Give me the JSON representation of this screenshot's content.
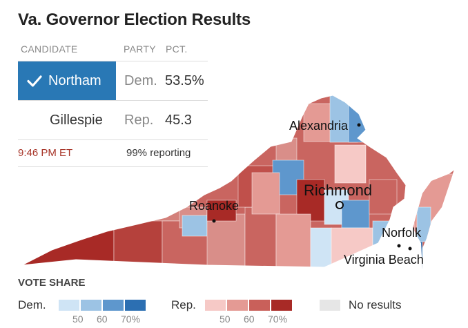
{
  "title": "Va. Governor Election Results",
  "table": {
    "headers": {
      "candidate": "CANDIDATE",
      "party": "PARTY",
      "pct": "PCT."
    },
    "rows": [
      {
        "candidate": "Northam",
        "party": "Dem.",
        "pct": "53.5%",
        "winner": true
      },
      {
        "candidate": "Gillespie",
        "party": "Rep.",
        "pct": "45.3",
        "winner": false
      }
    ],
    "time": "9:46 PM ET",
    "reporting": "99% reporting"
  },
  "cities": {
    "alexandria": "Alexandria",
    "richmond": "Richmond",
    "roanoke": "Roanoke",
    "norfolk": "Norfolk",
    "virginia_beach": "Virginia Beach"
  },
  "legend": {
    "title": "VOTE SHARE",
    "dem_label": "Dem.",
    "rep_label": "Rep.",
    "none_label": "No results",
    "ticks": [
      "50",
      "60",
      "70%"
    ],
    "dem_colors": [
      "#cfe4f5",
      "#9cc3e4",
      "#5e97cd",
      "#2c6fb2"
    ],
    "rep_colors": [
      "#f6c9c6",
      "#e49a94",
      "#c9605a",
      "#a82a26"
    ],
    "none_color": "#e6e6e6"
  }
}
